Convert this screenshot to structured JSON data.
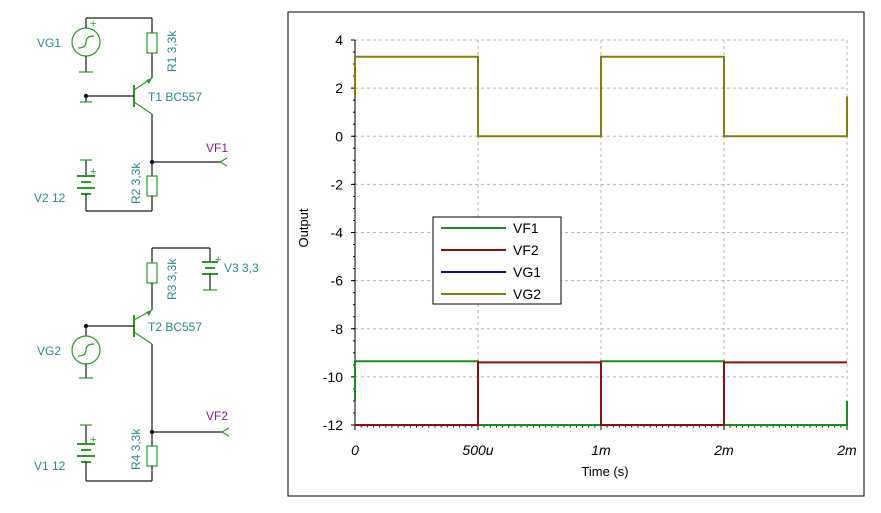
{
  "schematic": {
    "components": {
      "vg1": "VG1",
      "r1": "R1 3,3k",
      "t1": "T1 BC557",
      "vf1": "VF1",
      "r2": "R2 3,3k",
      "v2": "V2 12",
      "r3": "R3 3,3k",
      "v3": "V3 3,3",
      "t2": "T2 BC557",
      "vg2": "VG2",
      "vf2": "VF2",
      "r4": "R4 3,3k",
      "v1": "V1 12"
    },
    "wire_color": "#1a1a1a",
    "component_color": "#2a9a2a",
    "label_color": "#2a8a8a",
    "net_label_color": "#8a1a8a"
  },
  "chart_data": {
    "type": "line",
    "xlabel": "Time (s)",
    "ylabel": "Output",
    "x_unit": "s",
    "xlim": [
      0,
      0.002
    ],
    "ylim": [
      -12,
      4
    ],
    "x_ticks": [
      0,
      0.0005,
      0.001,
      0.0015,
      0.002
    ],
    "x_tick_labels": [
      "0",
      "500u",
      "1m",
      "2m",
      "2m"
    ],
    "y_ticks": [
      4,
      2,
      0,
      -2,
      -4,
      -6,
      -8,
      -10,
      -12
    ],
    "y_tick_labels": [
      "4",
      "2",
      "0",
      "-2",
      "-4",
      "-6",
      "-8",
      "-10",
      "-12"
    ],
    "grid": true,
    "legend_position": "center-left",
    "series": [
      {
        "name": "VF1",
        "color": "#1e8c1e",
        "x": [
          0,
          0,
          0.0005,
          0.0005,
          0.001,
          0.001,
          0.0015,
          0.0015,
          0.002,
          0.002
        ],
        "y": [
          -11,
          -9.35,
          -9.35,
          -12,
          -12,
          -9.35,
          -9.35,
          -12,
          -12,
          -11
        ]
      },
      {
        "name": "VF2",
        "color": "#8b1010",
        "x": [
          0,
          0,
          0.0005,
          0.0005,
          0.001,
          0.001,
          0.0015,
          0.0015,
          0.002
        ],
        "y": [
          -12,
          -12,
          -12,
          -9.4,
          -9.4,
          -12,
          -12,
          -9.4,
          -9.4
        ]
      },
      {
        "name": "VG1",
        "color": "#101080",
        "x": [],
        "y": []
      },
      {
        "name": "VG2",
        "color": "#808010",
        "x": [
          0,
          0,
          0.0005,
          0.0005,
          0.001,
          0.001,
          0.0015,
          0.0015,
          0.002,
          0.002
        ],
        "y": [
          1.65,
          3.3,
          3.3,
          0,
          0,
          3.3,
          3.3,
          0,
          0,
          1.65
        ]
      }
    ]
  }
}
